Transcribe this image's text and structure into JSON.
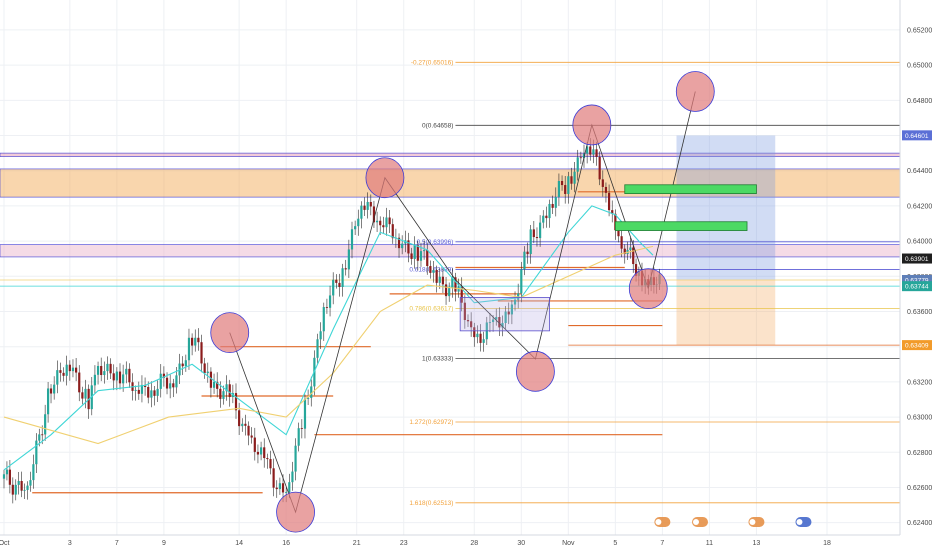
{
  "chart_data": {
    "type": "line",
    "ylim": [
      0.6233,
      0.6537
    ],
    "y_ticks": [
      "0.65200",
      "0.65000",
      "0.64800",
      "0.64600",
      "0.64400",
      "0.64200",
      "0.64000",
      "0.63800",
      "0.63600",
      "0.63400",
      "0.63200",
      "0.63000",
      "0.62800",
      "0.62600",
      "0.62400"
    ],
    "y_tick_values": [
      0.652,
      0.65,
      0.648,
      0.646,
      0.644,
      0.642,
      0.64,
      0.638,
      0.636,
      0.634,
      0.632,
      0.63,
      0.628,
      0.626,
      0.624
    ],
    "x_ticks": [
      "Oct",
      "3",
      "7",
      "9",
      "14",
      "16",
      "21",
      "23",
      "28",
      "30",
      "Nov",
      "5",
      "7",
      "11",
      "13",
      "18"
    ],
    "x_tick_index": [
      0,
      14,
      24,
      34,
      50,
      60,
      75,
      85,
      100,
      110,
      120,
      130,
      140,
      150,
      160,
      175
    ],
    "x_max_index": 185,
    "price_tags": [
      {
        "value": 0.64601,
        "label": "0.64601",
        "color": "#5b6fd6"
      },
      {
        "value": 0.63901,
        "label": "0.63901",
        "color": "#1f1f1f"
      },
      {
        "value": 0.63779,
        "label": "0.63779",
        "color": "#5e7fb8"
      },
      {
        "value": 0.63744,
        "label": "0.63744",
        "color": "#26a69a"
      },
      {
        "value": 0.63409,
        "label": "0.63409",
        "color": "#f29b2a"
      }
    ],
    "fib_levels": [
      {
        "label": "-0.27(0.65016)",
        "value": 0.65016,
        "color": "#f2a23c"
      },
      {
        "label": "0(0.64658)",
        "value": 0.64658,
        "color": "#444444"
      },
      {
        "label": "0.5(0.63996)",
        "value": 0.63996,
        "color": "#5b5bd6"
      },
      {
        "label": "0.618(0.63839)",
        "value": 0.63839,
        "color": "#5b5bd6"
      },
      {
        "label": "0.786(0.63617)",
        "value": 0.63617,
        "color": "#e8c44a"
      },
      {
        "label": "1(0.63333)",
        "value": 0.63333,
        "color": "#444444"
      },
      {
        "label": "1.272(0.62972)",
        "value": 0.62972,
        "color": "#f2a23c"
      },
      {
        "label": "1.618(0.62513)",
        "value": 0.62513,
        "color": "#f2a23c"
      }
    ],
    "series": [
      {
        "type": "candlestick",
        "x": [
          0,
          5,
          10,
          14,
          18,
          20,
          24,
          28,
          32,
          36,
          40,
          44,
          48,
          52,
          56,
          60,
          64,
          68,
          72,
          76,
          80,
          84,
          88,
          92,
          96,
          100,
          104,
          108,
          112,
          116,
          120,
          124,
          128,
          130,
          132,
          135,
          137,
          140
        ],
        "close": [
          0.6265,
          0.6258,
          0.632,
          0.6328,
          0.631,
          0.6325,
          0.6328,
          0.6315,
          0.6318,
          0.632,
          0.6345,
          0.632,
          0.631,
          0.629,
          0.627,
          0.6255,
          0.6305,
          0.636,
          0.6385,
          0.642,
          0.6415,
          0.6398,
          0.6395,
          0.6378,
          0.6372,
          0.6345,
          0.635,
          0.6362,
          0.64,
          0.642,
          0.6435,
          0.6455,
          0.6432,
          0.6404,
          0.6395,
          0.6385,
          0.6375,
          0.6377
        ]
      },
      {
        "name": "",
        "type": "ema-fast",
        "color": "#3fd6d6",
        "x": [
          0,
          10,
          20,
          30,
          40,
          50,
          60,
          70,
          80,
          90,
          100,
          110,
          120,
          125,
          130,
          135,
          138
        ],
        "values": [
          0.627,
          0.629,
          0.6315,
          0.6318,
          0.633,
          0.631,
          0.629,
          0.635,
          0.6405,
          0.6395,
          0.6365,
          0.6368,
          0.6405,
          0.642,
          0.6415,
          0.64,
          0.6392
        ]
      },
      {
        "name": "",
        "type": "ema-slow",
        "color": "#f0d070",
        "x": [
          0,
          20,
          35,
          50,
          60,
          70,
          80,
          90,
          100,
          110,
          120,
          130,
          138
        ],
        "values": [
          0.63,
          0.6285,
          0.63,
          0.6305,
          0.63,
          0.6325,
          0.636,
          0.6375,
          0.6372,
          0.6368,
          0.638,
          0.6392,
          0.6397
        ]
      }
    ],
    "annotations": [
      {
        "type": "rect-zone",
        "y": [
          0.6448,
          0.645
        ],
        "color": "#e38ba8"
      },
      {
        "type": "rect-zone",
        "y": [
          0.6425,
          0.6441
        ],
        "color": "#f2a44a"
      },
      {
        "type": "rect-zone",
        "y": [
          0.6391,
          0.6398
        ],
        "color": "#e8b0c7"
      },
      {
        "type": "rect-green",
        "x": [
          132,
          160
        ],
        "y": [
          0.6427,
          0.6432
        ]
      },
      {
        "type": "rect-green",
        "x": [
          130,
          158
        ],
        "y": [
          0.6406,
          0.6411
        ]
      },
      {
        "type": "position-profit",
        "x": [
          143,
          164
        ],
        "y": [
          0.6378,
          0.646
        ]
      },
      {
        "type": "position-loss",
        "x": [
          143,
          164
        ],
        "y": [
          0.6341,
          0.6378
        ]
      },
      {
        "type": "circle",
        "x": 48,
        "y": 0.6348
      },
      {
        "type": "circle",
        "x": 81,
        "y": 0.6436
      },
      {
        "type": "circle",
        "x": 62,
        "y": 0.6246
      },
      {
        "type": "circle",
        "x": 113,
        "y": 0.6326
      },
      {
        "type": "circle",
        "x": 125,
        "y": 0.6466
      },
      {
        "type": "circle",
        "x": 137,
        "y": 0.6373
      },
      {
        "type": "circle",
        "x": 147,
        "y": 0.6485
      }
    ]
  }
}
